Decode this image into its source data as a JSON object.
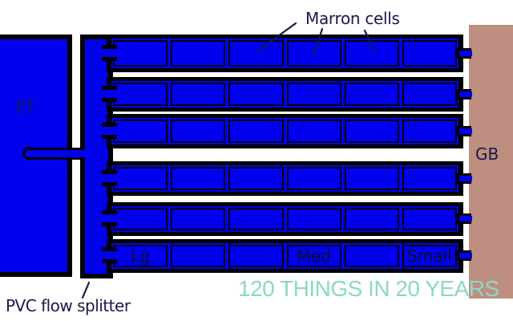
{
  "labels": {
    "fish_tank": "FT",
    "grow_bed": "GB",
    "marron_cells": "Marron cells",
    "flow_splitter": "PVC flow splitter",
    "watermark": "120 THINGS IN 20 YEARS"
  },
  "grid": {
    "rows": 6,
    "cells_per_row": 6,
    "cell_labels_by_row": [
      [
        "",
        "",
        "",
        "",
        "",
        ""
      ],
      [
        "",
        "",
        "",
        "",
        "",
        ""
      ],
      [
        "",
        "",
        "",
        "",
        "",
        ""
      ],
      [
        "",
        "",
        "",
        "",
        "",
        ""
      ],
      [
        "",
        "",
        "",
        "",
        "",
        ""
      ],
      [
        "Lg",
        "",
        "",
        "Med",
        "",
        "Small"
      ]
    ]
  },
  "colors": {
    "water_blue": "#0101ee",
    "grow_bed_tan": "#be8e80",
    "outline_black": "#000000",
    "label_navy": "#19194b",
    "watermark_teal": "#8cd7c8"
  }
}
